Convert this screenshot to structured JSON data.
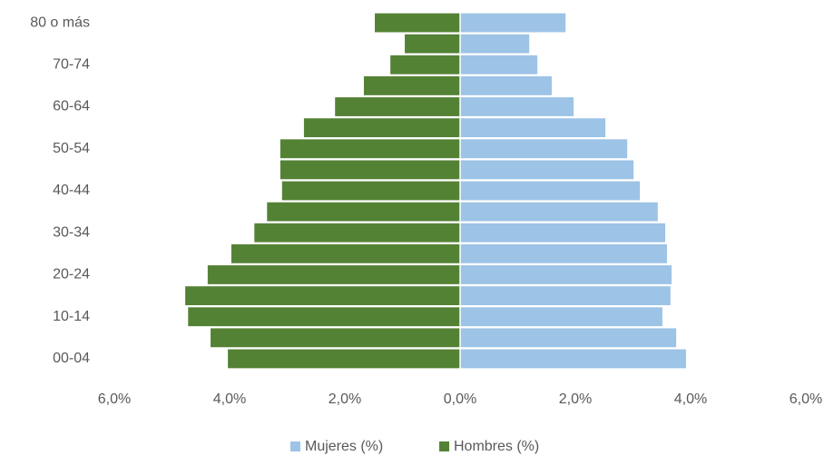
{
  "chart_data": {
    "type": "bar",
    "orientation": "horizontal",
    "categories": [
      "00-04",
      null,
      "10-14",
      null,
      "20-24",
      null,
      "30-34",
      null,
      "40-44",
      null,
      "50-54",
      null,
      "60-64",
      null,
      "70-74",
      null,
      "80 o más"
    ],
    "series": [
      {
        "name": "Mujeres (%)",
        "color": "#9dc3e6",
        "values": [
          3.92,
          3.75,
          3.51,
          3.65,
          3.67,
          3.59,
          3.56,
          3.43,
          3.12,
          3.01,
          2.9,
          2.52,
          1.97,
          1.59,
          1.34,
          1.2,
          1.83
        ]
      },
      {
        "name": "Hombres (%)",
        "color": "#548235",
        "values": [
          -4.03,
          -4.33,
          -4.72,
          -4.77,
          -4.38,
          -3.97,
          -3.57,
          -3.35,
          -3.09,
          -3.12,
          -3.12,
          -2.71,
          -2.17,
          -1.67,
          -1.21,
          -0.96,
          -1.48
        ]
      }
    ],
    "xlim": [
      -6,
      6
    ],
    "xticks": [
      {
        "value": -6,
        "label": "6,0%"
      },
      {
        "value": -4,
        "label": "4,0%"
      },
      {
        "value": -2,
        "label": "2,0%"
      },
      {
        "value": 0,
        "label": "0,0%"
      },
      {
        "value": 2,
        "label": "2,0%"
      },
      {
        "value": 4,
        "label": "4,0%"
      },
      {
        "value": 6,
        "label": "6,0%"
      }
    ],
    "legend": "bottom"
  }
}
